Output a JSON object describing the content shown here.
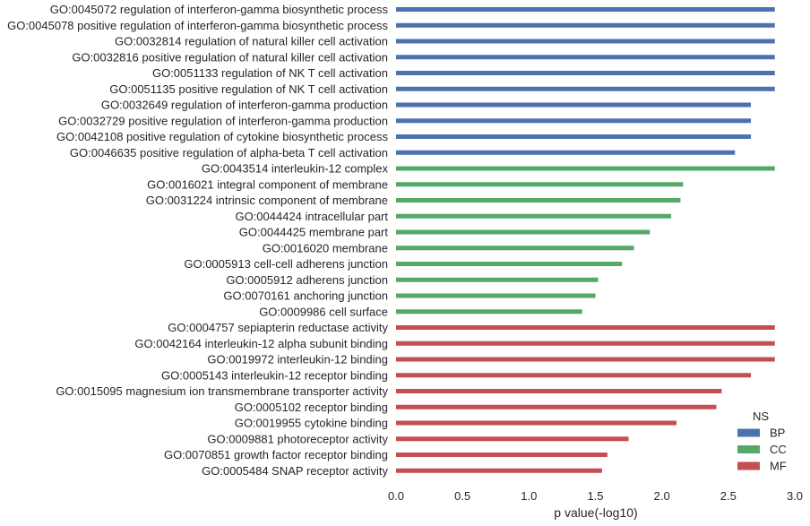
{
  "chart_data": {
    "type": "bar",
    "orientation": "horizontal",
    "xlabel": "p value(-log10)",
    "xlim": [
      0,
      3.0
    ],
    "xticks": [
      "0.0",
      "0.5",
      "1.0",
      "1.5",
      "2.0",
      "2.5",
      "3.0"
    ],
    "grid": false,
    "legend": {
      "title": "NS",
      "placement": "bottom-right",
      "entries": [
        {
          "name": "BP",
          "color": "#4c72b0"
        },
        {
          "name": "CC",
          "color": "#55a868"
        },
        {
          "name": "MF",
          "color": "#c44e52"
        }
      ]
    },
    "bars": [
      {
        "label": "GO:0045072 regulation of interferon-gamma biosynthetic process",
        "value": 2.85,
        "ns": "BP"
      },
      {
        "label": "GO:0045078 positive regulation of interferon-gamma biosynthetic process",
        "value": 2.85,
        "ns": "BP"
      },
      {
        "label": "GO:0032814 regulation of natural killer cell activation",
        "value": 2.85,
        "ns": "BP"
      },
      {
        "label": "GO:0032816 positive regulation of natural killer cell activation",
        "value": 2.85,
        "ns": "BP"
      },
      {
        "label": "GO:0051133 regulation of NK T cell activation",
        "value": 2.85,
        "ns": "BP"
      },
      {
        "label": "GO:0051135 positive regulation of NK T cell activation",
        "value": 2.85,
        "ns": "BP"
      },
      {
        "label": "GO:0032649 regulation of interferon-gamma production",
        "value": 2.67,
        "ns": "BP"
      },
      {
        "label": "GO:0032729 positive regulation of interferon-gamma production",
        "value": 2.67,
        "ns": "BP"
      },
      {
        "label": "GO:0042108 positive regulation of cytokine biosynthetic process",
        "value": 2.67,
        "ns": "BP"
      },
      {
        "label": "GO:0046635 positive regulation of alpha-beta T cell activation",
        "value": 2.55,
        "ns": "BP"
      },
      {
        "label": "GO:0043514 interleukin-12 complex",
        "value": 2.85,
        "ns": "CC"
      },
      {
        "label": "GO:0016021 integral component of membrane",
        "value": 2.16,
        "ns": "CC"
      },
      {
        "label": "GO:0031224 intrinsic component of membrane",
        "value": 2.14,
        "ns": "CC"
      },
      {
        "label": "GO:0044424 intracellular part",
        "value": 2.07,
        "ns": "CC"
      },
      {
        "label": "GO:0044425 membrane part",
        "value": 1.91,
        "ns": "CC"
      },
      {
        "label": "GO:0016020 membrane",
        "value": 1.79,
        "ns": "CC"
      },
      {
        "label": "GO:0005913 cell-cell adherens junction",
        "value": 1.7,
        "ns": "CC"
      },
      {
        "label": "GO:0005912 adherens junction",
        "value": 1.52,
        "ns": "CC"
      },
      {
        "label": "GO:0070161 anchoring junction",
        "value": 1.5,
        "ns": "CC"
      },
      {
        "label": "GO:0009986 cell surface",
        "value": 1.4,
        "ns": "CC"
      },
      {
        "label": "GO:0004757 sepiapterin reductase activity",
        "value": 2.85,
        "ns": "MF"
      },
      {
        "label": "GO:0042164 interleukin-12 alpha subunit binding",
        "value": 2.85,
        "ns": "MF"
      },
      {
        "label": "GO:0019972 interleukin-12 binding",
        "value": 2.85,
        "ns": "MF"
      },
      {
        "label": "GO:0005143 interleukin-12 receptor binding",
        "value": 2.67,
        "ns": "MF"
      },
      {
        "label": "GO:0015095 magnesium ion transmembrane transporter activity",
        "value": 2.45,
        "ns": "MF"
      },
      {
        "label": "GO:0005102 receptor binding",
        "value": 2.41,
        "ns": "MF"
      },
      {
        "label": "GO:0019955 cytokine binding",
        "value": 2.11,
        "ns": "MF"
      },
      {
        "label": "GO:0009881 photoreceptor activity",
        "value": 1.75,
        "ns": "MF"
      },
      {
        "label": "GO:0070851 growth factor receptor binding",
        "value": 1.59,
        "ns": "MF"
      },
      {
        "label": "GO:0005484 SNAP receptor activity",
        "value": 1.55,
        "ns": "MF"
      }
    ]
  }
}
